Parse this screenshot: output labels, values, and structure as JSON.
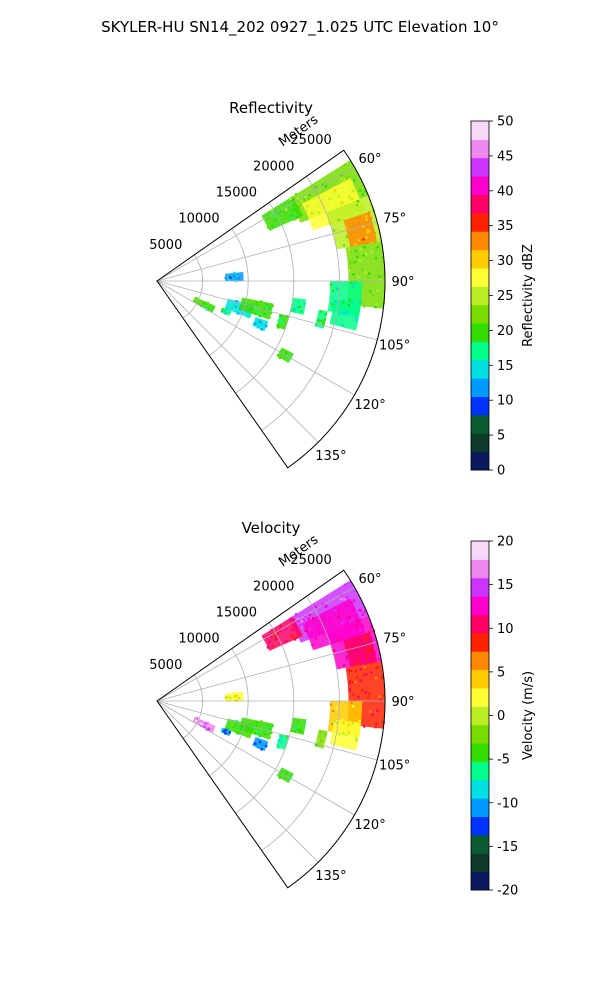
{
  "figure_title": "SKYLER-HU  SN14_202  0927_1.025 UTC Elevation 10°",
  "chart_data": [
    {
      "type": "heatmap",
      "subtype": "polar-sector radar PPI",
      "title": "Reflectivity",
      "radial_label": "Meters",
      "radial_ticks": [
        5000,
        10000,
        15000,
        20000,
        25000
      ],
      "range_max": 25000,
      "azimuth_range": [
        55,
        145
      ],
      "azimuth_ticks": [
        "60°",
        "75°",
        "90°",
        "105°",
        "120°",
        "135°"
      ],
      "azimuth_tick_values": [
        60,
        75,
        90,
        105,
        120,
        135
      ],
      "grid": true,
      "colorbar": {
        "label": "Reflectivity dBZ",
        "min": 0,
        "max": 50,
        "ticks": [
          0,
          5,
          10,
          15,
          20,
          25,
          30,
          35,
          40,
          45,
          50
        ],
        "colors": [
          "#0b1a5e",
          "#0f3a2a",
          "#0a5a30",
          "#0033ff",
          "#0099ff",
          "#00e0e0",
          "#00ff88",
          "#33dd00",
          "#77dd00",
          "#bbee22",
          "#ffff33",
          "#ffcc00",
          "#ff8800",
          "#ff2200",
          "#ff0066",
          "#ff00cc",
          "#cc33ff",
          "#ee88ee",
          "#f8d8f8"
        ]
      },
      "echoes": [
        {
          "az_min": 58,
          "az_max": 68,
          "r_min": 17000,
          "r_max": 25000,
          "level": 22
        },
        {
          "az_min": 62,
          "az_max": 72,
          "r_min": 18000,
          "r_max": 24000,
          "level": 27
        },
        {
          "az_min": 58,
          "az_max": 66,
          "r_min": 13500,
          "r_max": 17500,
          "level": 21
        },
        {
          "az_min": 68,
          "az_max": 80,
          "r_min": 20000,
          "r_max": 25000,
          "level": 24
        },
        {
          "az_min": 72,
          "az_max": 80,
          "r_min": 21500,
          "r_max": 24500,
          "level": 33
        },
        {
          "az_min": 80,
          "az_max": 97,
          "r_min": 21000,
          "r_max": 25000,
          "level": 22
        },
        {
          "az_min": 90,
          "az_max": 100,
          "r_min": 19000,
          "r_max": 22500,
          "level": 18
        },
        {
          "az_min": 96,
          "az_max": 104,
          "r_min": 19500,
          "r_max": 22500,
          "level": 16
        },
        {
          "az_min": 84,
          "az_max": 90,
          "r_min": 7500,
          "r_max": 9500,
          "level": 13
        },
        {
          "az_min": 104,
          "az_max": 112,
          "r_min": 8000,
          "r_max": 11000,
          "level": 14
        },
        {
          "az_min": 101,
          "az_max": 109,
          "r_min": 9500,
          "r_max": 13000,
          "level": 20
        },
        {
          "az_min": 97,
          "az_max": 103,
          "r_min": 15000,
          "r_max": 16500,
          "level": 17
        },
        {
          "az_min": 100,
          "az_max": 106,
          "r_min": 18000,
          "r_max": 19000,
          "level": 18
        },
        {
          "az_min": 105,
          "az_max": 111,
          "r_min": 14000,
          "r_max": 15000,
          "level": 19
        },
        {
          "az_min": 113,
          "az_max": 120,
          "r_min": 4500,
          "r_max": 7000,
          "level": 20
        },
        {
          "az_min": 112,
          "az_max": 116,
          "r_min": 7800,
          "r_max": 8800,
          "level": 18
        },
        {
          "az_min": 110,
          "az_max": 115,
          "r_min": 11500,
          "r_max": 13000,
          "level": 14
        },
        {
          "az_min": 118,
          "az_max": 122,
          "r_min": 15500,
          "r_max": 17000,
          "level": 20
        }
      ]
    },
    {
      "type": "heatmap",
      "subtype": "polar-sector radar PPI",
      "title": "Velocity",
      "radial_label": "Meters",
      "radial_ticks": [
        5000,
        10000,
        15000,
        20000,
        25000
      ],
      "range_max": 25000,
      "azimuth_range": [
        55,
        145
      ],
      "azimuth_ticks": [
        "60°",
        "75°",
        "90°",
        "105°",
        "120°",
        "135°"
      ],
      "azimuth_tick_values": [
        60,
        75,
        90,
        105,
        120,
        135
      ],
      "grid": true,
      "colorbar": {
        "label": "Velocity (m/s)",
        "min": -20,
        "max": 20,
        "ticks": [
          -20,
          -15,
          -10,
          -5,
          0,
          5,
          10,
          15,
          20
        ],
        "colors": [
          "#0b1a5e",
          "#0f3a2a",
          "#0a5a30",
          "#0033ff",
          "#0099ff",
          "#00e0e0",
          "#00ff88",
          "#33dd00",
          "#77dd00",
          "#bbee22",
          "#ffff33",
          "#ffcc00",
          "#ff8800",
          "#ff2200",
          "#ff0066",
          "#ff00cc",
          "#cc33ff",
          "#ee88ee",
          "#f8d8f8"
        ]
      },
      "echoes": [
        {
          "az_min": 58,
          "az_max": 68,
          "r_min": 17000,
          "r_max": 25000,
          "level": 14
        },
        {
          "az_min": 62,
          "az_max": 72,
          "r_min": 18000,
          "r_max": 24000,
          "level": 13
        },
        {
          "az_min": 58,
          "az_max": 66,
          "r_min": 13500,
          "r_max": 17500,
          "level": 10
        },
        {
          "az_min": 68,
          "az_max": 80,
          "r_min": 20000,
          "r_max": 25000,
          "level": 12
        },
        {
          "az_min": 72,
          "az_max": 80,
          "r_min": 21500,
          "r_max": 24500,
          "level": 10
        },
        {
          "az_min": 80,
          "az_max": 97,
          "r_min": 21000,
          "r_max": 25000,
          "level": 9
        },
        {
          "az_min": 90,
          "az_max": 100,
          "r_min": 19000,
          "r_max": 22500,
          "level": 4
        },
        {
          "az_min": 96,
          "az_max": 104,
          "r_min": 19500,
          "r_max": 22500,
          "level": 2
        },
        {
          "az_min": 84,
          "az_max": 90,
          "r_min": 7500,
          "r_max": 9500,
          "level": 2
        },
        {
          "az_min": 104,
          "az_max": 112,
          "r_min": 8000,
          "r_max": 11000,
          "level": -4
        },
        {
          "az_min": 101,
          "az_max": 109,
          "r_min": 9500,
          "r_max": 13000,
          "level": -4
        },
        {
          "az_min": 97,
          "az_max": 103,
          "r_min": 15000,
          "r_max": 16500,
          "level": -5
        },
        {
          "az_min": 100,
          "az_max": 106,
          "r_min": 18000,
          "r_max": 19000,
          "level": -3
        },
        {
          "az_min": 105,
          "az_max": 111,
          "r_min": 14000,
          "r_max": 15000,
          "level": -6
        },
        {
          "az_min": 113,
          "az_max": 120,
          "r_min": 4500,
          "r_max": 7000,
          "level": 16
        },
        {
          "az_min": 112,
          "az_max": 116,
          "r_min": 7800,
          "r_max": 8800,
          "level": -11
        },
        {
          "az_min": 110,
          "az_max": 115,
          "r_min": 11500,
          "r_max": 13000,
          "level": -11
        },
        {
          "az_min": 118,
          "az_max": 122,
          "r_min": 15500,
          "r_max": 17000,
          "level": -5
        }
      ]
    }
  ]
}
